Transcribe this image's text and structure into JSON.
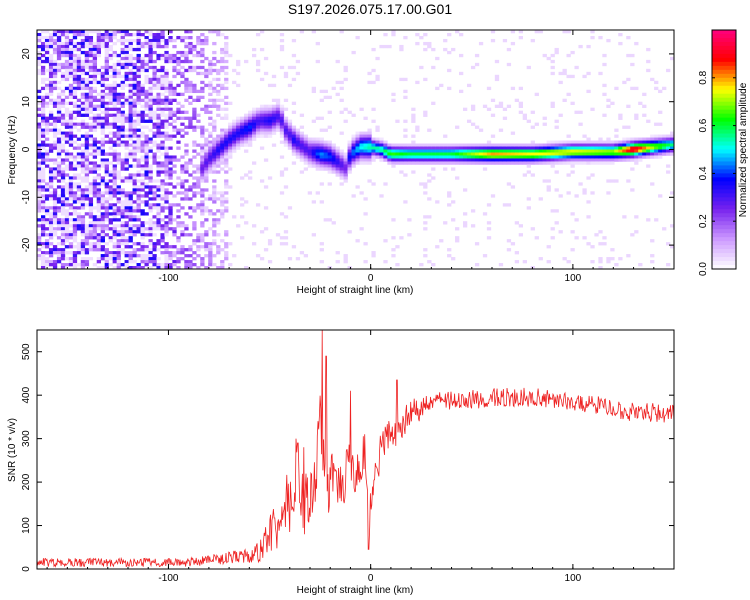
{
  "title": "S197.2026.075.17.00.G01",
  "chart_data": [
    {
      "type": "heatmap",
      "title": "S197.2026.075.17.00.G01",
      "xlabel": "Height of straight line (km)",
      "ylabel": "Frequency (Hz)",
      "xlim": [
        -165,
        150
      ],
      "ylim": [
        -25,
        25
      ],
      "xticks": [
        -100,
        0,
        100
      ],
      "yticks": [
        -20,
        -10,
        0,
        10,
        20
      ],
      "colorbar": {
        "label": "Normalized spectral amplitude",
        "range": [
          0.0,
          1.0
        ],
        "ticks": [
          "0.0",
          "0.2",
          "0.4",
          "0.6",
          "0.8"
        ],
        "tick_values": [
          0.0,
          0.2,
          0.4,
          0.6,
          0.8
        ],
        "colors": [
          "#ffffff",
          "#cc99ff",
          "#7722ee",
          "#0000ff",
          "#00ffff",
          "#00ff00",
          "#ffff00",
          "#ff0000",
          "#ff0080"
        ]
      },
      "noise_region_x": [
        -165,
        -70
      ],
      "noise_amplitude": 0.15,
      "ridge": {
        "x": [
          -85,
          -80,
          -75,
          -70,
          -65,
          -60,
          -55,
          -50,
          -45,
          -42,
          -40,
          -38,
          -35,
          -30,
          -25,
          -20,
          -15,
          -12,
          -10,
          -5,
          0,
          5,
          10,
          20,
          40,
          60,
          80,
          100,
          120,
          130,
          140,
          150
        ],
        "freq": [
          -5,
          -2,
          0,
          2,
          3.5,
          4.5,
          6,
          6,
          7,
          4,
          3,
          2,
          1,
          -0.5,
          -1,
          -1.5,
          -3,
          -4,
          -1,
          0.5,
          0.5,
          0,
          -1,
          -1,
          -1,
          -1,
          -1,
          -0.5,
          -0.5,
          0,
          0.5,
          1
        ],
        "amplitude": [
          0.25,
          0.3,
          0.35,
          0.35,
          0.35,
          0.4,
          0.3,
          0.35,
          0.3,
          0.3,
          0.3,
          0.35,
          0.3,
          0.3,
          0.45,
          0.4,
          0.3,
          0.25,
          0.4,
          0.5,
          0.55,
          0.55,
          0.65,
          0.6,
          0.6,
          0.8,
          0.75,
          0.75,
          0.7,
          0.95,
          0.7,
          0.55
        ]
      }
    },
    {
      "type": "line",
      "xlabel": "Height of straight line (km)",
      "ylabel": "SNR (10 * v/v)",
      "xlim": [
        -165,
        150
      ],
      "ylim": [
        0,
        550
      ],
      "xticks": [
        -100,
        0,
        100
      ],
      "yticks": [
        0,
        100,
        200,
        300,
        400,
        500
      ],
      "color": "#ee2222",
      "series": [
        {
          "name": "SNR",
          "x": [
            -165,
            -140,
            -120,
            -100,
            -90,
            -80,
            -70,
            -60,
            -55,
            -50,
            -45,
            -40,
            -38,
            -35,
            -30,
            -28,
            -25,
            -24,
            -22,
            -20,
            -15,
            -10,
            -5,
            -3,
            0,
            5,
            10,
            15,
            20,
            30,
            40,
            50,
            60,
            80,
            100,
            120,
            130,
            140,
            150
          ],
          "values": [
            15,
            15,
            15,
            15,
            15,
            20,
            25,
            30,
            40,
            80,
            110,
            170,
            230,
            160,
            140,
            200,
            320,
            250,
            180,
            200,
            190,
            240,
            220,
            270,
            120,
            270,
            310,
            330,
            360,
            380,
            390,
            390,
            395,
            395,
            385,
            370,
            360,
            360,
            355
          ],
          "noise": [
            10,
            10,
            10,
            10,
            10,
            12,
            15,
            18,
            25,
            40,
            60,
            90,
            110,
            80,
            70,
            80,
            90,
            80,
            80,
            70,
            60,
            60,
            55,
            60,
            60,
            50,
            40,
            35,
            30,
            25,
            22,
            22,
            22,
            22,
            22,
            22,
            22,
            22,
            22
          ],
          "spikes": [
            {
              "x": -37,
              "value": 300
            },
            {
              "x": -36,
              "value": 290
            },
            {
              "x": -33,
              "value": 280
            },
            {
              "x": -24,
              "value": 550
            },
            {
              "x": -22,
              "value": 490
            },
            {
              "x": -10,
              "value": 410
            },
            {
              "x": -3,
              "value": 310
            },
            {
              "x": -1,
              "value": 45
            },
            {
              "x": 13,
              "value": 435
            }
          ]
        }
      ]
    }
  ]
}
